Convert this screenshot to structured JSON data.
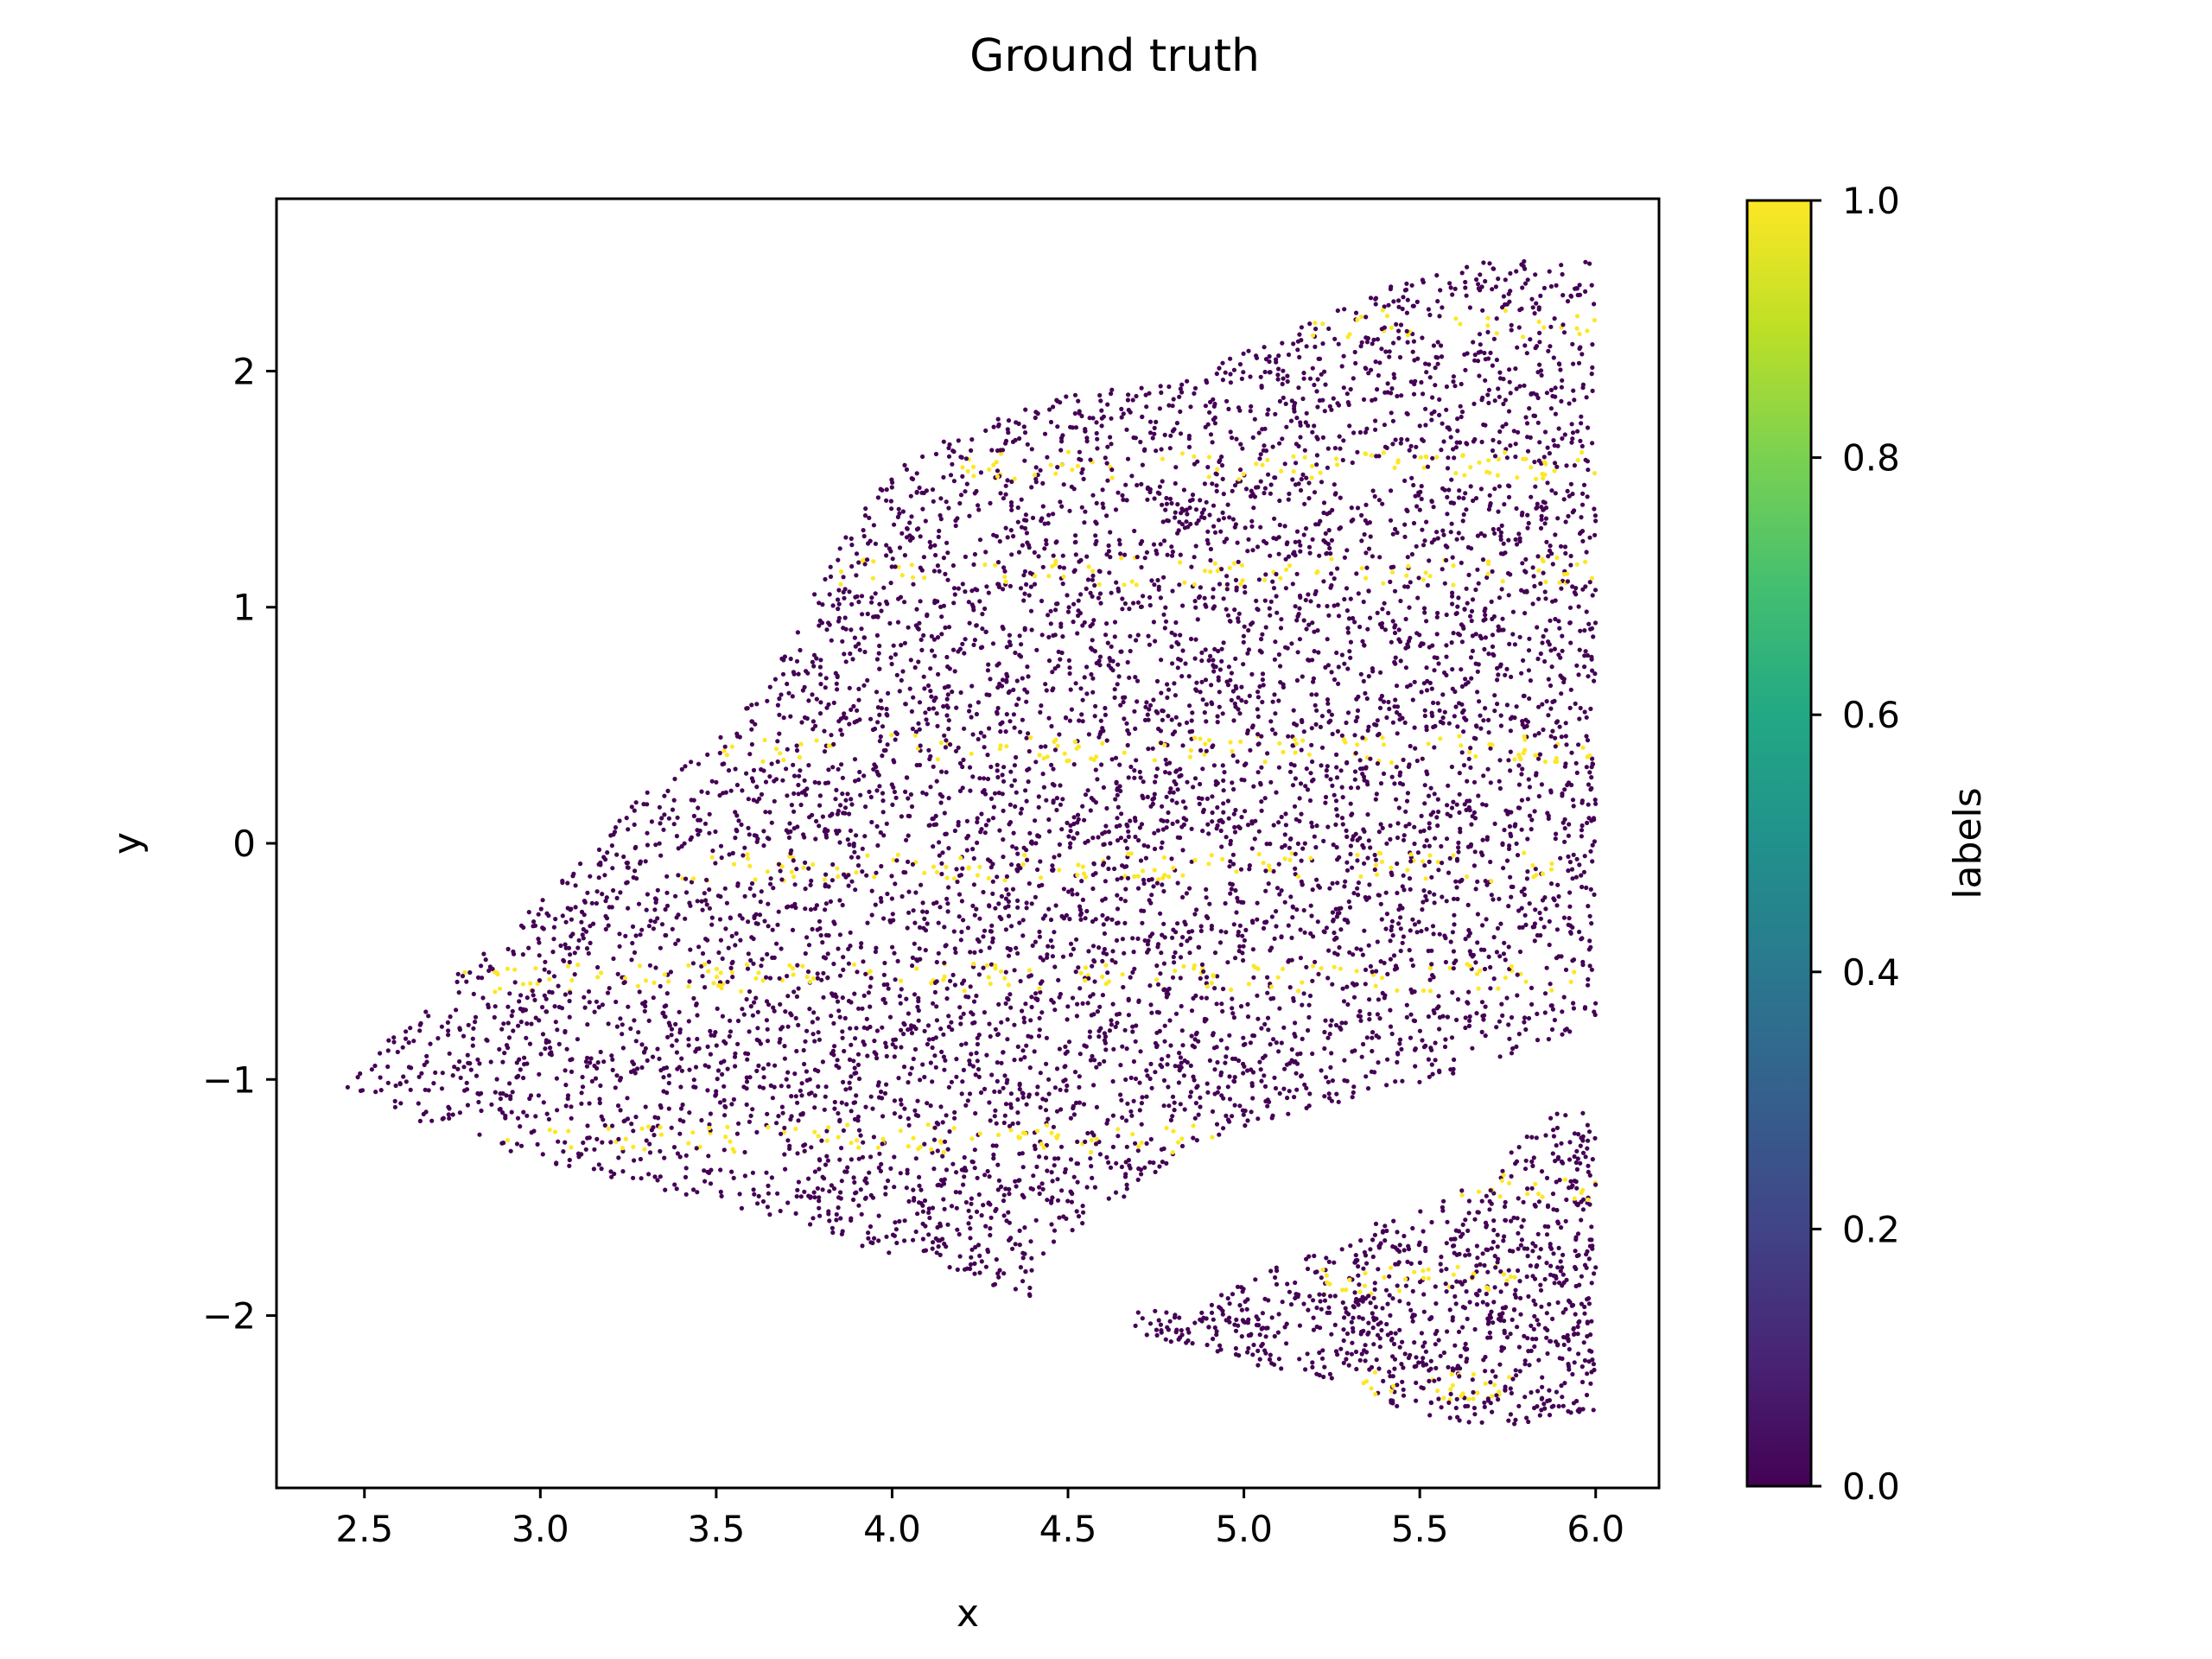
{
  "chart_data": {
    "type": "scatter",
    "title": "Ground truth",
    "xlabel": "x",
    "ylabel": "y",
    "xlim": [
      2.25,
      6.18
    ],
    "ylim": [
      -2.73,
      2.73
    ],
    "xticks": [
      {
        "value": 2.5,
        "label": "2.5"
      },
      {
        "value": 3.0,
        "label": "3.0"
      },
      {
        "value": 3.5,
        "label": "3.5"
      },
      {
        "value": 4.0,
        "label": "4.0"
      },
      {
        "value": 4.5,
        "label": "4.5"
      },
      {
        "value": 5.0,
        "label": "5.0"
      },
      {
        "value": 5.5,
        "label": "5.5"
      },
      {
        "value": 6.0,
        "label": "6.0"
      }
    ],
    "yticks": [
      {
        "value": 2,
        "label": "2"
      },
      {
        "value": 1,
        "label": "1"
      },
      {
        "value": 0,
        "label": "0"
      },
      {
        "value": -1,
        "label": "−1"
      },
      {
        "value": -2,
        "label": "−2"
      }
    ],
    "grid": false,
    "colorbar": {
      "label": "labels",
      "colormap": "viridis",
      "range": [
        0.0,
        1.0
      ],
      "ticks": [
        {
          "value": 0.0,
          "label": "0.0"
        },
        {
          "value": 0.2,
          "label": "0.2"
        },
        {
          "value": 0.4,
          "label": "0.4"
        },
        {
          "value": 0.6,
          "label": "0.6"
        },
        {
          "value": 0.8,
          "label": "0.8"
        },
        {
          "value": 1.0,
          "label": "1.0"
        }
      ]
    },
    "colors": {
      "label_0": "#440154",
      "label_1": "#fde725"
    },
    "point_regions": [
      {
        "name": "main",
        "polygon": [
          [
            2.42,
            -1.07
          ],
          [
            2.7,
            -0.62
          ],
          [
            3.0,
            -0.25
          ],
          [
            3.3,
            0.22
          ],
          [
            3.55,
            0.5
          ],
          [
            3.7,
            0.85
          ],
          [
            3.9,
            1.4
          ],
          [
            4.1,
            1.7
          ],
          [
            4.5,
            1.9
          ],
          [
            4.8,
            1.95
          ],
          [
            5.1,
            2.15
          ],
          [
            5.4,
            2.35
          ],
          [
            5.7,
            2.47
          ],
          [
            6.0,
            2.47
          ],
          [
            6.0,
            -0.75
          ],
          [
            5.9,
            -0.82
          ],
          [
            5.55,
            -1.0
          ],
          [
            5.2,
            -1.12
          ],
          [
            4.9,
            -1.25
          ],
          [
            4.7,
            -1.45
          ],
          [
            4.4,
            -1.8
          ],
          [
            4.4,
            -1.92
          ],
          [
            4.1,
            -1.8
          ],
          [
            3.7,
            -1.6
          ],
          [
            3.3,
            -1.45
          ],
          [
            3.0,
            -1.35
          ],
          [
            2.6,
            -1.15
          ]
        ],
        "count": 7200
      },
      {
        "name": "lower-right",
        "polygon": [
          [
            4.65,
            -1.98
          ],
          [
            4.85,
            -1.98
          ],
          [
            5.1,
            -1.78
          ],
          [
            5.3,
            -1.65
          ],
          [
            5.6,
            -1.48
          ],
          [
            5.9,
            -1.13
          ],
          [
            6.0,
            -1.15
          ],
          [
            6.0,
            -2.4
          ],
          [
            5.7,
            -2.48
          ],
          [
            5.4,
            -2.38
          ],
          [
            5.35,
            -2.3
          ],
          [
            5.1,
            -2.25
          ],
          [
            4.9,
            -2.15
          ],
          [
            4.7,
            -2.08
          ]
        ],
        "count": 1000
      }
    ],
    "label_1_bands": [
      {
        "y": -0.57,
        "x_range": [
          2.7,
          5.95
        ]
      },
      {
        "y": -0.1,
        "x_range": [
          3.4,
          5.9
        ]
      },
      {
        "y": 0.4,
        "x_range": [
          3.5,
          6.0
        ]
      },
      {
        "y": 1.15,
        "x_range": [
          3.85,
          6.0
        ]
      },
      {
        "y": 1.6,
        "x_range": [
          4.2,
          6.0
        ]
      },
      {
        "y": 2.2,
        "x_range": [
          5.0,
          6.0
        ]
      },
      {
        "y": -1.25,
        "x_range": [
          2.9,
          5.2
        ]
      },
      {
        "y": -1.85,
        "x_range": [
          5.2,
          5.8
        ]
      },
      {
        "y": -1.45,
        "x_range": [
          5.6,
          6.0
        ]
      },
      {
        "y": -2.3,
        "x_range": [
          5.3,
          5.8
        ]
      }
    ]
  }
}
